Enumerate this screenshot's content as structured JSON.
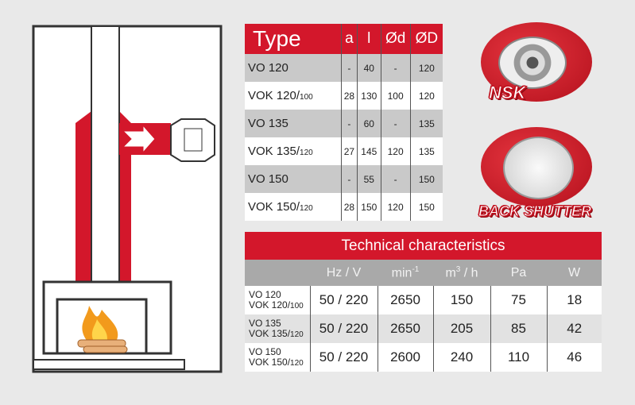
{
  "types_table": {
    "headers": [
      "Type",
      "a",
      "l",
      "Ød",
      "ØD"
    ],
    "rows": [
      {
        "type": "VO 120",
        "sub": "",
        "a": "-",
        "l": "40",
        "d": "-",
        "D": "120"
      },
      {
        "type": "VOK 120/",
        "sub": "100",
        "a": "28",
        "l": "130",
        "d": "100",
        "D": "120"
      },
      {
        "type": "VO 135",
        "sub": "",
        "a": "-",
        "l": "60",
        "d": "-",
        "D": "135"
      },
      {
        "type": "VOK 135/",
        "sub": "120",
        "a": "27",
        "l": "145",
        "d": "120",
        "D": "135"
      },
      {
        "type": "VO 150",
        "sub": "",
        "a": "-",
        "l": "55",
        "d": "-",
        "D": "150"
      },
      {
        "type": "VOK 150/",
        "sub": "120",
        "a": "28",
        "l": "150",
        "d": "120",
        "D": "150"
      }
    ]
  },
  "tech_table": {
    "title": "Technical characteristics",
    "headers": [
      "",
      "Hz / V",
      "min",
      "-1",
      "m",
      "3",
      " / h",
      "Pa",
      "W"
    ],
    "rows": [
      {
        "l1": "VO 120",
        "l2": "VOK 120/",
        "sub": "100",
        "hzv": "50 / 220",
        "rpm": "2650",
        "flow": "150",
        "pa": "75",
        "w": "18"
      },
      {
        "l1": "VO 135",
        "l2": "VOK 135/",
        "sub": "120",
        "hzv": "50 / 220",
        "rpm": "2650",
        "flow": "205",
        "pa": "85",
        "w": "42"
      },
      {
        "l1": "VO 150",
        "l2": "VOK 150/",
        "sub": "120",
        "hzv": "50 / 220",
        "rpm": "2600",
        "flow": "240",
        "pa": "110",
        "w": "46"
      }
    ]
  },
  "badges": {
    "nsk": "NSK",
    "shutter": "BACK SHUTTER"
  },
  "colors": {
    "accent": "#d3172b",
    "header_gray": "#a9a9a9",
    "stripe": "#c9c9c9"
  }
}
